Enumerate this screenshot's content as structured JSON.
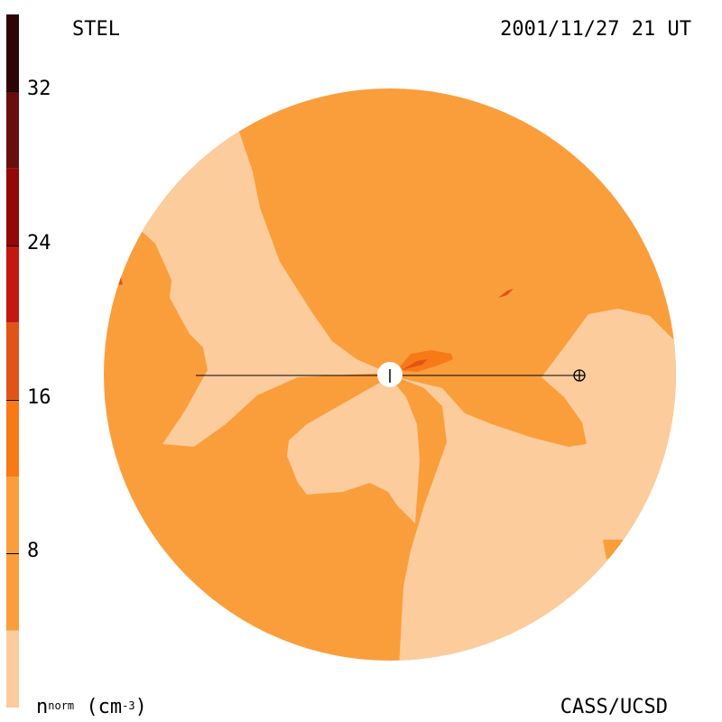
{
  "header": {
    "model": "STEL",
    "timestamp": "2001/11/27 21 UT"
  },
  "footer": {
    "credit": "CASS/UCSD"
  },
  "colorbar": {
    "label_base": "n",
    "label_sup": "norm",
    "label_unit": "(cm",
    "label_unit_sup": "-3",
    "label_close": ")",
    "min": 0,
    "max": 36,
    "ticks": [
      {
        "value": 32,
        "label": "32"
      },
      {
        "value": 24,
        "label": "24"
      },
      {
        "value": 16,
        "label": "16"
      },
      {
        "value": 8,
        "label": "8"
      }
    ],
    "bands": [
      {
        "from": 0,
        "to": 4,
        "color": "#fccc9c"
      },
      {
        "from": 4,
        "to": 12,
        "color": "#fa9e3c"
      },
      {
        "from": 12,
        "to": 16,
        "color": "#f77a17"
      },
      {
        "from": 16,
        "to": 20,
        "color": "#e15417"
      },
      {
        "from": 20,
        "to": 24,
        "color": "#c2180f"
      },
      {
        "from": 24,
        "to": 28,
        "color": "#950606"
      },
      {
        "from": 28,
        "to": 32,
        "color": "#6a0d0d"
      },
      {
        "from": 32,
        "to": 36,
        "color": "#2e0505"
      }
    ]
  },
  "chart_data": {
    "type": "heatmap",
    "title": "STEL",
    "timestamp": "2001/11/27 21 UT",
    "quantity": "n^norm (cm^-3)",
    "colorscale_range": [
      0,
      36
    ],
    "colorbar_ticks": [
      8,
      16,
      24,
      32
    ],
    "background_level_color": "#fa9e3c",
    "low_density_color": "#fccc9c",
    "enhancement_color": "#f77a17",
    "credit": "CASS/UCSD"
  },
  "colors": {
    "background": "#fa9e3c",
    "low": "#fccc9c",
    "mid": "#f77a17",
    "high": "#e15417",
    "sun_fill": "#ffffff",
    "line": "#000000"
  }
}
